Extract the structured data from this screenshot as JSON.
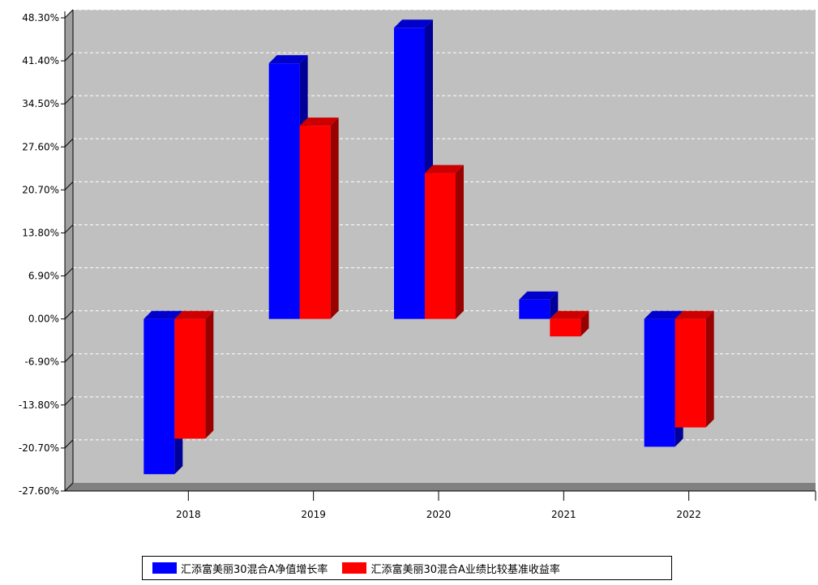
{
  "chart_data": {
    "type": "bar",
    "categories": [
      "2018",
      "2019",
      "2020",
      "2021",
      "2022"
    ],
    "series": [
      {
        "name": "汇添富美丽30混合A净值增长率",
        "color": "#0000ff",
        "values": [
          -24.9,
          41.0,
          46.7,
          3.1,
          -20.5
        ]
      },
      {
        "name": "汇添富美丽30混合A业绩比较基准收益率",
        "color": "#ff0000",
        "values": [
          -19.2,
          31.0,
          23.4,
          -2.8,
          -17.4
        ]
      }
    ],
    "ylim": [
      -27.6,
      48.3
    ],
    "yticks": [
      "48.30%",
      "41.40%",
      "34.50%",
      "27.60%",
      "20.70%",
      "13.80%",
      "6.90%",
      "0.00%",
      "-6.90%",
      "-13.80%",
      "-20.70%",
      "-27.60%"
    ],
    "ytick_values": [
      48.3,
      41.4,
      34.5,
      27.6,
      20.7,
      13.8,
      6.9,
      0,
      -6.9,
      -13.8,
      -20.7,
      -27.6
    ],
    "grid": true,
    "legend_position": "bottom",
    "plot_background": "#c0c0c0"
  }
}
